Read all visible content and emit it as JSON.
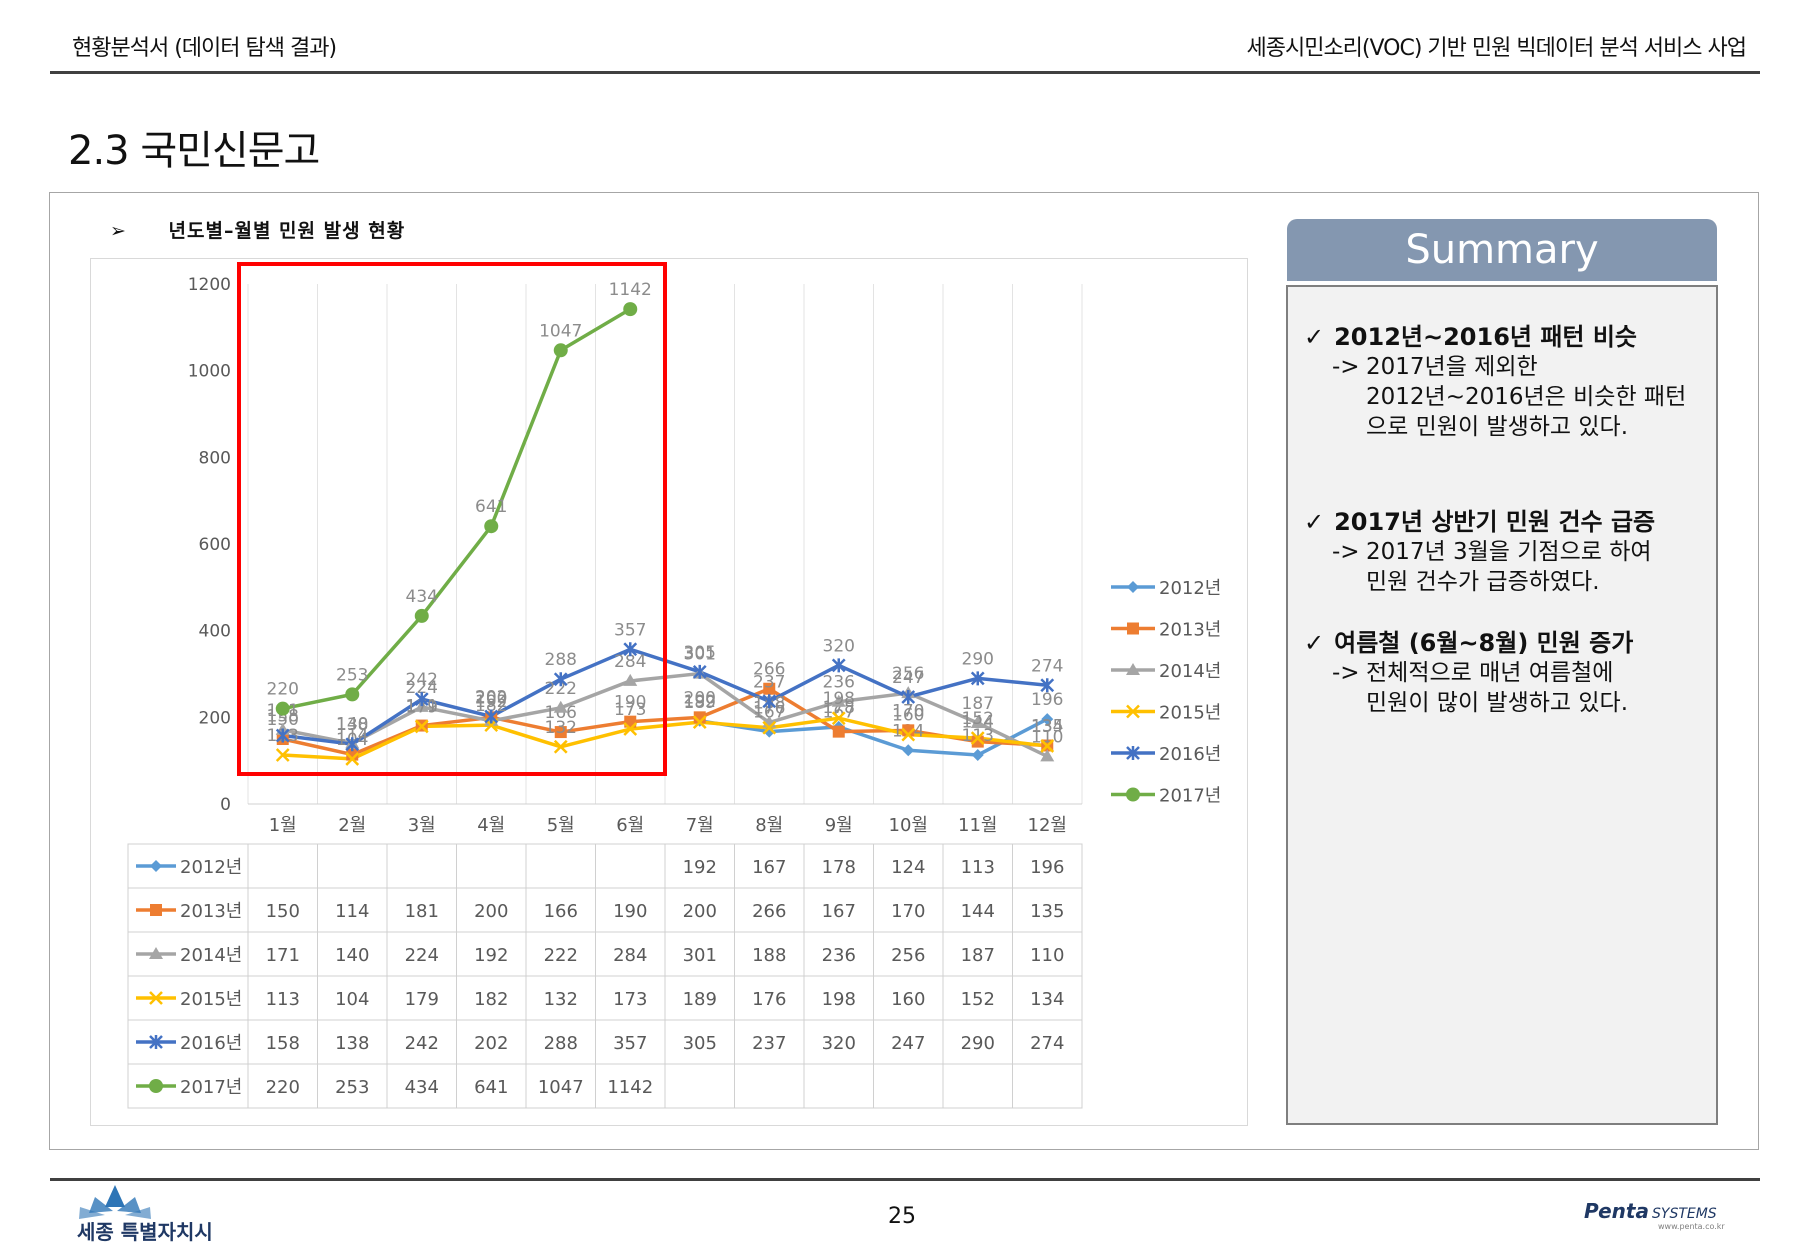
{
  "header": {
    "left": "현황분석서 (데이터 탐색 결과)",
    "right": "세종시민소리(VOC) 기반 민원 빅데이터 분석 서비스 사업"
  },
  "title": "2.3 국민신문고",
  "subheading": {
    "bullet": "➢",
    "text": "년도별–월별 민원 발생 현황"
  },
  "chart_data": {
    "type": "line",
    "categories": [
      "1월",
      "2월",
      "3월",
      "4월",
      "5월",
      "6월",
      "7월",
      "8월",
      "9월",
      "10월",
      "11월",
      "12월"
    ],
    "ylim": [
      0,
      1200
    ],
    "yticks": [
      0,
      200,
      400,
      600,
      800,
      1000,
      1200
    ],
    "grid": true,
    "legend": "right",
    "data_table": true,
    "series": [
      {
        "name": "2012년",
        "color": "#5b9bd5",
        "marker": "diamond",
        "values": [
          null,
          null,
          null,
          null,
          null,
          null,
          192,
          167,
          178,
          124,
          113,
          196
        ]
      },
      {
        "name": "2013년",
        "color": "#ed7d31",
        "marker": "square",
        "values": [
          150,
          114,
          181,
          200,
          166,
          190,
          200,
          266,
          167,
          170,
          144,
          135
        ]
      },
      {
        "name": "2014년",
        "color": "#a5a5a5",
        "marker": "triangle",
        "values": [
          171,
          140,
          224,
          192,
          222,
          284,
          301,
          188,
          236,
          256,
          187,
          110
        ]
      },
      {
        "name": "2015년",
        "color": "#ffc000",
        "marker": "x",
        "values": [
          113,
          104,
          179,
          182,
          132,
          173,
          189,
          176,
          198,
          160,
          152,
          134
        ]
      },
      {
        "name": "2016년",
        "color": "#4472c4",
        "marker": "star",
        "values": [
          158,
          138,
          242,
          202,
          288,
          357,
          305,
          237,
          320,
          247,
          290,
          274
        ]
      },
      {
        "name": "2017년",
        "color": "#70ad47",
        "marker": "circle",
        "values": [
          220,
          253,
          434,
          641,
          1047,
          1142,
          null,
          null,
          null,
          null,
          null,
          null
        ]
      }
    ],
    "highlight": {
      "from": "1월",
      "to": "6월",
      "color": "#ff0000"
    }
  },
  "summary": {
    "title": "Summary",
    "items": [
      {
        "check": "✓",
        "heading": "2012년~2016년 패턴 비슷",
        "arrow": "->",
        "line1": "2017년을 제외한",
        "rest": "2012년~2016년은 비슷한 패턴으로 민원이 발생하고 있다."
      },
      {
        "check": "✓",
        "heading": "2017년 상반기 민원 건수 급증",
        "arrow": "->",
        "line1": "2017년 3월을 기점으로 하여",
        "rest": "민원 건수가 급증하였다."
      },
      {
        "check": "✓",
        "heading": "여름철 (6월~8월) 민원 증가",
        "arrow": "->",
        "line1": "전체적으로 매년 여름철에",
        "rest": "민원이 많이 발생하고 있다."
      }
    ]
  },
  "footer": {
    "page": "25",
    "left_logo": "세종 특별자치시",
    "right_logo": {
      "brand": "Penta",
      "suffix": "SYSTEMS",
      "url": "www.penta.co.kr"
    }
  },
  "colors": {
    "accent": "#8497b0",
    "rule": "#404040",
    "highlight": "#ff0000"
  }
}
